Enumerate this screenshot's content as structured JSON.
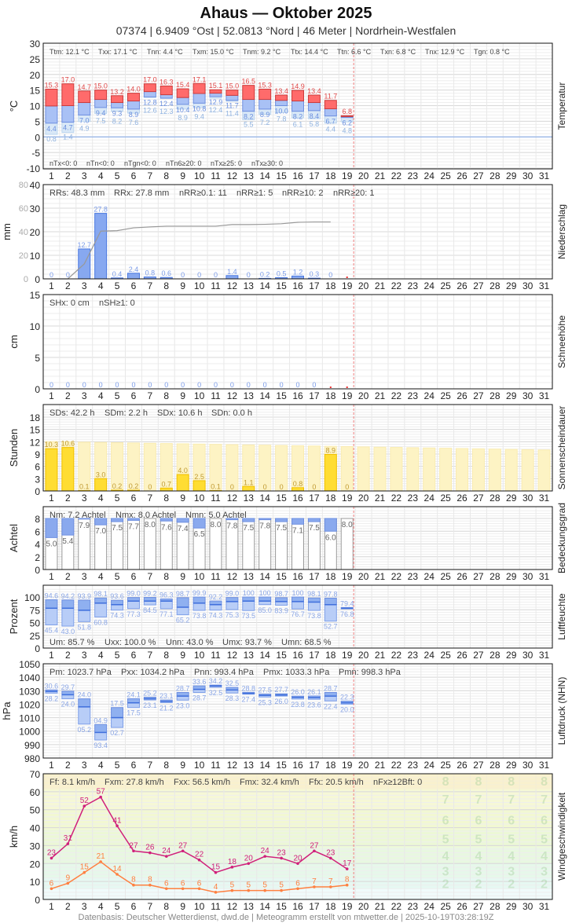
{
  "header": {
    "title": "Ahaus  —  Oktober 2025",
    "subtitle": "07374  |  6.9409 °Ost  |  52.0813 °Nord  |  46 Meter  |  Nordrhein-Westfalen"
  },
  "footer": "Datenbasis: Deutscher Wetterdienst, dwd.de | Meteogramm erstellt von mtwetter.de | 2025-10-19T03:28:19Z",
  "colors": {
    "tx": "#ff6b6b",
    "tn": "#a9c1f5",
    "tg": "#d9e8f7",
    "precip": "#87a8f0",
    "sun": "#ffdd33",
    "sun_possible": "#fdf3c4",
    "cloud": "#8aa9ee",
    "gust": "#d0207a",
    "wind": "#ff8040",
    "today_line": "#f08080"
  },
  "days": [
    1,
    2,
    3,
    4,
    5,
    6,
    7,
    8,
    9,
    10,
    11,
    12,
    13,
    14,
    15,
    16,
    17,
    18,
    19,
    20,
    21,
    22,
    23,
    24,
    25,
    26,
    27,
    28,
    29,
    30,
    31
  ],
  "today_after_day": 19,
  "chart_data": [
    {
      "type": "bar",
      "id": "temperature",
      "ylabel": "°C",
      "side_label": "Temperatur",
      "ylim": [
        -10,
        30
      ],
      "yticks": [
        30,
        25,
        20,
        15,
        10,
        5,
        0,
        -5,
        -10
      ],
      "stats_top": [
        "Ttm: 12.1 °C",
        "Txx: 17.1 °C",
        "Tnn: 4.4 °C",
        "Txm: 15.0 °C",
        "Tnm: 9.2 °C",
        "Ttx: 14.4 °C",
        "Ttn: 6.6 °C",
        "Txn: 6.8 °C",
        "Tnx: 12.9 °C",
        "Tgn: 0.8 °C"
      ],
      "stats_bottom": [
        "nTx<0: 0",
        "nTn<0: 0",
        "nTgn<0: 0",
        "nTn6≥20: 0",
        "nTx≥25: 0",
        "nTx≥30: 0"
      ],
      "tx": [
        15.3,
        17.0,
        14.7,
        15.0,
        13.2,
        14.0,
        17.0,
        16.3,
        15.4,
        17.1,
        15.1,
        15.0,
        16.5,
        15.3,
        13.4,
        14.9,
        13.4,
        11.7,
        6.8
      ],
      "tm": [
        9.9,
        10.0,
        11.0,
        12.0,
        11.0,
        11.5,
        14.5,
        13.5,
        12.6,
        13.9,
        14.0,
        13.3,
        12.0,
        12.0,
        11.7,
        11.5,
        11.0,
        9.0,
        6.5
      ],
      "tn": [
        4.4,
        4.7,
        7.0,
        9.4,
        9.3,
        8.9,
        12.8,
        12.4,
        10.4,
        10.8,
        12.9,
        11.7,
        8.2,
        8.9,
        10.0,
        8.2,
        8.4,
        6.7,
        6.2
      ],
      "tg": [
        0.8,
        1.4,
        4.9,
        7.5,
        8.2,
        7.6,
        12.6,
        12.3,
        8.9,
        9.4,
        12.4,
        11.4,
        5.5,
        7.2,
        7.8,
        6.1,
        5.8,
        4.4,
        4.8
      ]
    },
    {
      "type": "bar",
      "id": "precipitation",
      "ylabel": "mm",
      "side_label": "Niederschlag",
      "ylim": [
        0,
        40
      ],
      "yticks": [
        40,
        30,
        20,
        10,
        0
      ],
      "y2ticks": [
        80,
        60,
        40,
        20,
        0
      ],
      "y2lim": [
        0,
        80
      ],
      "stats_top": [
        "RRs: 48.3 mm",
        "RRx: 27.8 mm",
        "nRR≥0.1: 11",
        "nRR≥1: 5",
        "nRR≥10: 2",
        "nRR≥20: 1"
      ],
      "values": [
        0,
        0,
        12.7,
        27.8,
        0.4,
        2.4,
        0.8,
        0.6,
        0,
        0,
        0,
        1.4,
        0,
        0.2,
        0.5,
        1.2,
        0.3,
        0
      ],
      "labels": [
        "0",
        "0",
        "12.7",
        "27.8",
        "0.4",
        "2.4",
        "0.8",
        "0.6",
        "0",
        "0",
        "0",
        "1.4",
        "0",
        "0.2",
        "0.5",
        "1.2",
        "0.3",
        "0"
      ],
      "missing_days": [
        19
      ]
    },
    {
      "type": "bar",
      "id": "snow",
      "ylabel": "cm",
      "side_label": "Schneehöhe",
      "ylim": [
        0,
        15
      ],
      "yticks": [
        15,
        10,
        5,
        0
      ],
      "stats_top": [
        "SHx: 0 cm",
        "nSH≥1: 0"
      ],
      "values": [
        0,
        0,
        0,
        0,
        0,
        0,
        0,
        0,
        0,
        0,
        0,
        0,
        0,
        0,
        0,
        0,
        0
      ],
      "labels": [
        "0",
        "0",
        "0",
        "0",
        "0",
        "0",
        "0",
        "0",
        "0",
        "0",
        "0",
        "0",
        "0",
        "0",
        "0",
        "0",
        "0"
      ],
      "missing_days": [
        18,
        19
      ]
    },
    {
      "type": "bar",
      "id": "sunshine",
      "ylabel": "Stunden",
      "side_label": "Sonnenscheindauer",
      "ylim": [
        0,
        18
      ],
      "yticks": [
        18,
        15,
        12,
        9,
        6,
        3,
        0
      ],
      "stats_top": [
        "SDs: 42.2 h",
        "SDm: 2.2 h",
        "SDx: 10.6 h",
        "SDn: 0.0 h"
      ],
      "values": [
        10.3,
        10.6,
        0.1,
        3.0,
        0.2,
        0.2,
        0,
        0.7,
        4.0,
        2.5,
        0.1,
        0,
        1.1,
        0,
        0,
        0.8,
        0,
        8.9,
        0
      ],
      "labels": [
        "10.3",
        "10.6",
        "0.1",
        "3.0",
        "0.2",
        "0.2",
        "0",
        "0.7",
        "4.0",
        "2.5",
        "0.1",
        "0",
        "1.1",
        "0",
        "0",
        "0.8",
        "0",
        "8.9",
        "0"
      ],
      "possible_first": 11.9,
      "possible_last": 10.0
    },
    {
      "type": "bar",
      "id": "cloud",
      "ylabel": "Achtel",
      "side_label": "Bedeckungsgrad",
      "ylim": [
        0,
        8
      ],
      "yticks": [
        8,
        6,
        4,
        2,
        0
      ],
      "stats_top": [
        "Nm: 7.2 Achtel",
        "Nmx: 8.0 Achtel",
        "Nmn: 5.0 Achtel"
      ],
      "values": [
        5.0,
        5.4,
        7.9,
        7.0,
        7.5,
        7.7,
        8.0,
        7.6,
        7.4,
        6.5,
        8.0,
        7.8,
        7.5,
        7.8,
        7.5,
        7.1,
        7.5,
        6.0,
        8.0
      ],
      "labels": [
        "5.0",
        "5.4",
        "7.9",
        "7.0",
        "7.5",
        "7.7",
        "8.0",
        "7.6",
        "7.4",
        "6.5",
        "8.0",
        "7.8",
        "7.5",
        "7.8",
        "7.5",
        "7.1",
        "7.5",
        "6.0",
        "8.0"
      ]
    },
    {
      "type": "bar",
      "id": "humidity",
      "ylabel": "Prozent",
      "side_label": "Luftfeuchte",
      "ylim": [
        0,
        100
      ],
      "yticks": [
        100,
        75,
        50,
        25,
        0
      ],
      "stats_top": [
        "Um: 85.7 %",
        "Uxx: 100.0 %",
        "Unn: 43.0 %",
        "Umx: 93.7 %",
        "Umn: 68.5 %"
      ],
      "max": [
        94.6,
        94.2,
        93.9,
        98.1,
        93.6,
        99.0,
        99.2,
        96.3,
        98.7,
        99.9,
        92.2,
        99.0,
        100,
        100,
        98.7,
        100,
        98.1,
        97.8,
        79.4
      ],
      "max_labels": [
        "94.6",
        "94.2",
        "93.9",
        "98.1",
        "93.6",
        "99.0",
        "99.2",
        "96.3",
        "98.7",
        "99.9",
        "92.2",
        "99.0",
        "100",
        "100",
        "98.7",
        "100",
        "98.1",
        "97.8",
        "79.4"
      ],
      "mean": [
        78,
        78,
        74,
        88,
        85,
        92,
        92,
        92,
        80,
        88,
        85,
        91,
        92,
        92,
        91,
        91,
        90,
        85,
        78
      ],
      "min": [
        45.4,
        43.0,
        51.8,
        60.8,
        74.3,
        77.3,
        84.5,
        77.1,
        65.2,
        73.8,
        74.3,
        75.3,
        73.5,
        85.0,
        83.9,
        76.7,
        73.8,
        52.7,
        76.8
      ],
      "min_labels": [
        "45.4",
        "43.0",
        "51.8",
        "60.8",
        "74.3",
        "77.3",
        "84.5",
        "77.1",
        "65.2",
        "73.8",
        "74.3",
        "75.3",
        "73.5",
        "85.0",
        "83.9",
        "76.7",
        "73.8",
        "52.7",
        "76.8"
      ]
    },
    {
      "type": "bar",
      "id": "pressure",
      "ylabel": "hPa",
      "side_label": "Luftdruck (NHN)",
      "ylim": [
        980,
        1050
      ],
      "yticks": [
        1050,
        1040,
        1030,
        1020,
        1010,
        1000,
        990,
        980
      ],
      "stats_top": [
        "Pm: 1023.7 hPa",
        "Pxx: 1034.2 hPa",
        "Pnn: 993.4 hPa",
        "Pmx: 1033.3 hPa",
        "Pmn: 998.3 hPa"
      ],
      "max": [
        1030.6,
        1029.7,
        1024.0,
        1004.9,
        1017.5,
        1024.1,
        1025.2,
        1023.1,
        1028.7,
        1033.6,
        1034.2,
        1032.5,
        1028.8,
        1027.5,
        1027.7,
        1026.0,
        1026.1,
        1028.7,
        1022.3
      ],
      "max_labels": [
        "30.6",
        "29.7",
        "24.0",
        "04.9",
        "17.5",
        "24.1",
        "25.2",
        "23.1",
        "28.7",
        "33.6",
        "34.2",
        "32.5",
        "28.8",
        "27.5",
        "27.7",
        "26.0",
        "26.1",
        "28.7",
        "22.3"
      ],
      "mean": [
        1029.5,
        1027,
        1018,
        999,
        1010,
        1021,
        1024,
        1022,
        1026,
        1031,
        1033.5,
        1030.5,
        1028,
        1026.5,
        1026.8,
        1025,
        1024.8,
        1026,
        1021
      ],
      "min": [
        1028.2,
        1024.0,
        1005.2,
        993.4,
        1002.7,
        1017.5,
        1023.1,
        1021.2,
        1023.0,
        1028.7,
        1032.5,
        1028.3,
        1027.4,
        1025.3,
        1026.0,
        1023.8,
        1023.6,
        1022.4,
        1020.0
      ],
      "min_labels": [
        "28.2",
        "24.0",
        "05.2",
        "93.4",
        "02.7",
        "17.5",
        "23.1",
        "21.2",
        "23.0",
        "28.7",
        "32.5",
        "28.3",
        "27.4",
        "25.3",
        "26.0",
        "23.8",
        "23.6",
        "22.4",
        "20.0"
      ]
    },
    {
      "type": "line",
      "id": "wind",
      "ylabel": "km/h",
      "side_label": "Windgeschwindigkeit",
      "ylim": [
        0,
        70
      ],
      "yticks": [
        70,
        60,
        50,
        40,
        30,
        20,
        10,
        0
      ],
      "stats_top": [
        "Ff: 8.1 km/h",
        "Fxm: 27.8 km/h",
        "Fxx: 56.5 km/h",
        "Fmx: 32.4 km/h",
        "Ffx: 20.5 km/h",
        "nFx≥12Bft: 0"
      ],
      "series": [
        {
          "name": "gust",
          "values": [
            23,
            31,
            52,
            57,
            41,
            27,
            26,
            24,
            27,
            22,
            15,
            18,
            20,
            24,
            23,
            20,
            27,
            23,
            17
          ]
        },
        {
          "name": "mean",
          "values": [
            6,
            9,
            15,
            21,
            14,
            8,
            8,
            6,
            6,
            6,
            4,
            5,
            5,
            5,
            5,
            6,
            7,
            7,
            8
          ]
        }
      ],
      "beaufort": [
        {
          "bft": "2",
          "from": 6,
          "to": 12,
          "color": "#e6f8f2"
        },
        {
          "bft": "3",
          "from": 12,
          "to": 20,
          "color": "#e6f8ea"
        },
        {
          "bft": "4",
          "from": 20,
          "to": 29,
          "color": "#e8f8e0"
        },
        {
          "bft": "5",
          "from": 29,
          "to": 39,
          "color": "#ecf8d6"
        },
        {
          "bft": "6",
          "from": 39,
          "to": 50,
          "color": "#f2f8d2"
        },
        {
          "bft": "7",
          "from": 50,
          "to": 62,
          "color": "#f6f8d6"
        },
        {
          "bft": "8",
          "from": 62,
          "to": 75,
          "color": "#f8f2d6"
        }
      ]
    }
  ]
}
